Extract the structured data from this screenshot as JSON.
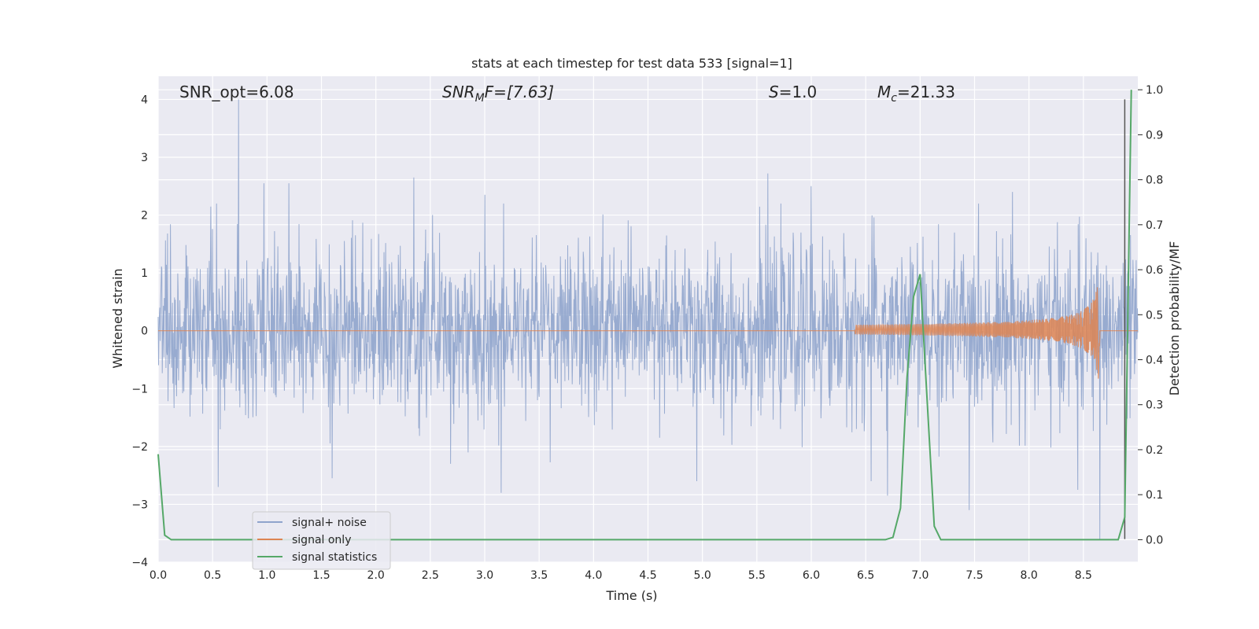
{
  "chart_data": {
    "type": "line",
    "title": "stats at each timestep for test data 533 [signal=1]",
    "xlabel": "Time (s)",
    "ylabel": "Whitened strain",
    "y2label": "Detection probability/MF",
    "xlim": [
      0.0,
      9.0
    ],
    "ylim": [
      -4,
      4.4
    ],
    "y2lim": [
      -0.05,
      1.03
    ],
    "x_ticks": [
      "0.0",
      "0.5",
      "1.0",
      "1.5",
      "2.0",
      "2.5",
      "3.0",
      "3.5",
      "4.0",
      "4.5",
      "5.0",
      "5.5",
      "6.0",
      "6.5",
      "7.0",
      "7.5",
      "8.0",
      "8.5"
    ],
    "y_ticks": [
      "−4",
      "−3",
      "−2",
      "−1",
      "0",
      "1",
      "2",
      "3",
      "4"
    ],
    "y2_ticks": [
      "0.0",
      "0.1",
      "0.2",
      "0.3",
      "0.4",
      "0.5",
      "0.6",
      "0.7",
      "0.8",
      "0.9",
      "1.0"
    ],
    "grid": true,
    "legend_position": "bottom-left",
    "annotations": {
      "snr_opt": "SNR_opt=6.08",
      "snr_mf_main": "SNR",
      "snr_mf_sub": "M",
      "snr_mf_tail": "F=[7.63]",
      "s_main": "S",
      "s_tail": "=1.0",
      "mc_main": "M",
      "mc_sub": "c",
      "mc_tail": "=21.33"
    },
    "series": [
      {
        "name": "signal+ noise",
        "color": "#8fa4cc",
        "description_values": "dense noise trace spanning roughly -1.4 to 1.5 with spikes up to 4 near t=0.74 and down to -3.6 near t=8.65",
        "spikes_up": [
          [
            0.74,
            4.0
          ],
          [
            2.35,
            2.65
          ],
          [
            5.6,
            2.72
          ],
          [
            0.97,
            2.55
          ],
          [
            1.6,
            2.4
          ],
          [
            3.0,
            2.35
          ],
          [
            6.0,
            2.5
          ],
          [
            7.85,
            2.4
          ],
          [
            1.2,
            2.55
          ]
        ],
        "spikes_down": [
          [
            0.55,
            -2.7
          ],
          [
            1.6,
            -2.55
          ],
          [
            3.15,
            -2.8
          ],
          [
            4.95,
            -2.6
          ],
          [
            6.55,
            -2.6
          ],
          [
            6.7,
            -2.85
          ],
          [
            7.45,
            -3.1
          ],
          [
            8.45,
            -2.75
          ],
          [
            8.65,
            -3.6
          ]
        ]
      },
      {
        "name": "signal only",
        "color": "#dd8452",
        "description_values": "chirp centered at 0, amplitude growing from ~0 to ~1.1 between t=6.4 and t=8.65, then zero",
        "chirp_start": 6.4,
        "chirp_peak_time": 8.65,
        "chirp_peak_amp": 1.13
      },
      {
        "name": "signal statistics",
        "color": "#55a868",
        "axis": "right",
        "x": [
          0.0,
          0.06,
          0.12,
          6.68,
          6.75,
          6.82,
          6.88,
          6.94,
          7.0,
          7.06,
          7.13,
          7.19,
          8.82,
          8.88,
          8.94
        ],
        "y": [
          0.19,
          0.01,
          0.0,
          0.0,
          0.005,
          0.07,
          0.36,
          0.54,
          0.59,
          0.33,
          0.03,
          0.0,
          0.0,
          0.05,
          1.0
        ]
      }
    ],
    "vertical_line": {
      "x": 8.88,
      "color": "#555555"
    }
  }
}
